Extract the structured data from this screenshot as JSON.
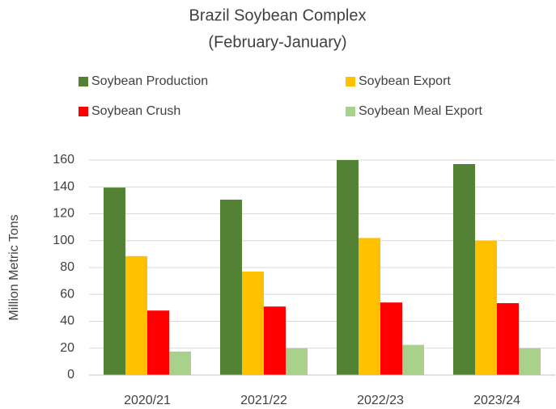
{
  "chart_data": {
    "type": "bar",
    "title": "Brazil Soybean Complex",
    "subtitle": "(February-January)",
    "y_label": "Million Metric Tons",
    "categories": [
      "2020/21",
      "2021/22",
      "2022/23",
      "2023/24"
    ],
    "series": [
      {
        "name": "Soybean Production",
        "color": "#548235",
        "values": [
          139.5,
          130.5,
          160,
          157
        ]
      },
      {
        "name": "Soybean Export",
        "color": "#ffc000",
        "values": [
          88.5,
          77,
          102,
          100
        ]
      },
      {
        "name": "Soybean Crush",
        "color": "#ff0000",
        "values": [
          48,
          51,
          54,
          53.5
        ]
      },
      {
        "name": "Soybean Meal Export",
        "color": "#a9d18e",
        "values": [
          17.5,
          20,
          22.5,
          20
        ]
      }
    ],
    "ylim": [
      0,
      160
    ],
    "yticks": [
      0,
      20,
      40,
      60,
      80,
      100,
      120,
      140,
      160
    ],
    "grid": true,
    "legend": "top"
  }
}
